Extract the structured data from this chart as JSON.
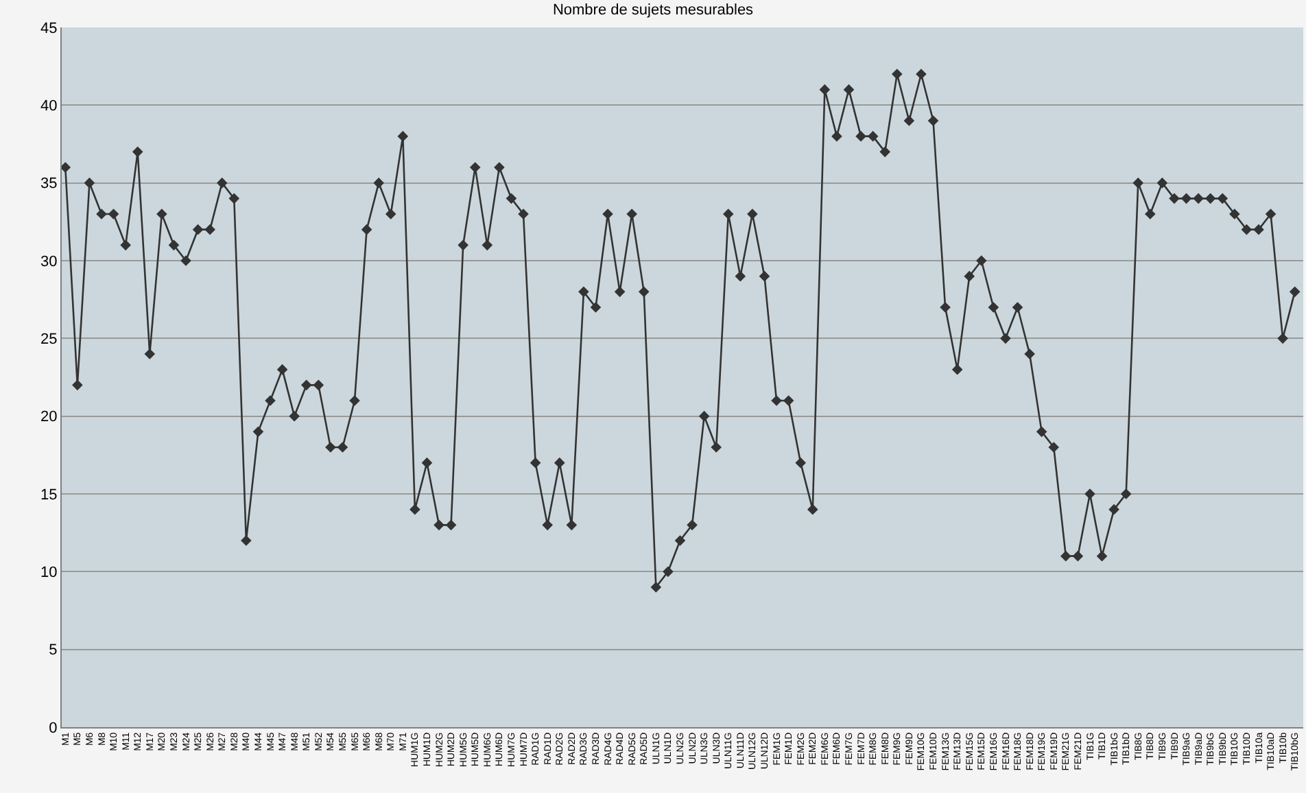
{
  "chart_data": {
    "type": "line",
    "title": "Nombre de sujets mesurables",
    "categories": [
      "M1",
      "M5",
      "M6",
      "M8",
      "M10",
      "M11",
      "M12",
      "M17",
      "M20",
      "M23",
      "M24",
      "M25",
      "M26",
      "M27",
      "M28",
      "M40",
      "M44",
      "M45",
      "M47",
      "M48",
      "M51",
      "M52",
      "M54",
      "M55",
      "M65",
      "M66",
      "M68",
      "M70",
      "M71",
      "HUM1G",
      "HUM1D",
      "HUM2G",
      "HUM2D",
      "HUM5G",
      "HUM5D",
      "HUM6G",
      "HUM6D",
      "HUM7G",
      "HUM7D",
      "RAD1G",
      "RAD1D",
      "RAD2G",
      "RAD2D",
      "RAD3G",
      "RAD3D",
      "RAD4G",
      "RAD4D",
      "RAD5G",
      "RAD5D",
      "ULN1G",
      "ULN1D",
      "ULN2G",
      "ULN2D",
      "ULN3G",
      "ULN3D",
      "ULN11G",
      "ULN11D",
      "ULN12G",
      "ULN12D",
      "FEM1G",
      "FEM1D",
      "FEM2G",
      "FEM2D",
      "FEM6G",
      "FEM6D",
      "FEM7G",
      "FEM7D",
      "FEM8G",
      "FEM8D",
      "FEM9G",
      "FEM9D",
      "FEM10G",
      "FEM10D",
      "FEM13G",
      "FEM13D",
      "FEM15G",
      "FEM15D",
      "FEM16G",
      "FEM16D",
      "FEM18G",
      "FEM18D",
      "FEM19G",
      "FEM19D",
      "FEM21G",
      "FEM21D",
      "TIB1G",
      "TIB1D",
      "TIB1bG",
      "TIB1bD",
      "TIB8G",
      "TIB8D",
      "TIB9G",
      "TIB9D",
      "TIB9aG",
      "TIB9aD",
      "TIB9bG",
      "TIB9bD",
      "TIB10G",
      "TIB10D",
      "TIB10a",
      "TIB10aD",
      "TIB10b",
      "TIB10bG"
    ],
    "series": [
      {
        "color": "#333333",
        "values": [
          36,
          22,
          35,
          33,
          33,
          31,
          37,
          24,
          33,
          31,
          30,
          32,
          32,
          35,
          34,
          12,
          19,
          21,
          23,
          20,
          22,
          22,
          18,
          18,
          21,
          32,
          35,
          33,
          38,
          14,
          17,
          13,
          13,
          31,
          36,
          31,
          36,
          34,
          33,
          17,
          13,
          17,
          13,
          28,
          27,
          33,
          28,
          33,
          28,
          9,
          10,
          12,
          13,
          20,
          18,
          33,
          29,
          33,
          29,
          21,
          21,
          17,
          14,
          41,
          38,
          41,
          38,
          38,
          37,
          42,
          39,
          42,
          39,
          27,
          23,
          29,
          30,
          27,
          25,
          27,
          24,
          19,
          18,
          11,
          11,
          15,
          11,
          14,
          15,
          35,
          33,
          35,
          34,
          34,
          34,
          34,
          34,
          33,
          32,
          32,
          33,
          25,
          28
        ]
      }
    ],
    "ylim": [
      0,
      45
    ],
    "yticks": [
      0,
      5,
      10,
      15,
      20,
      25,
      30,
      35,
      40,
      45
    ],
    "grid": "y",
    "legend": false,
    "marker": "diamond",
    "line_style": "solid"
  }
}
